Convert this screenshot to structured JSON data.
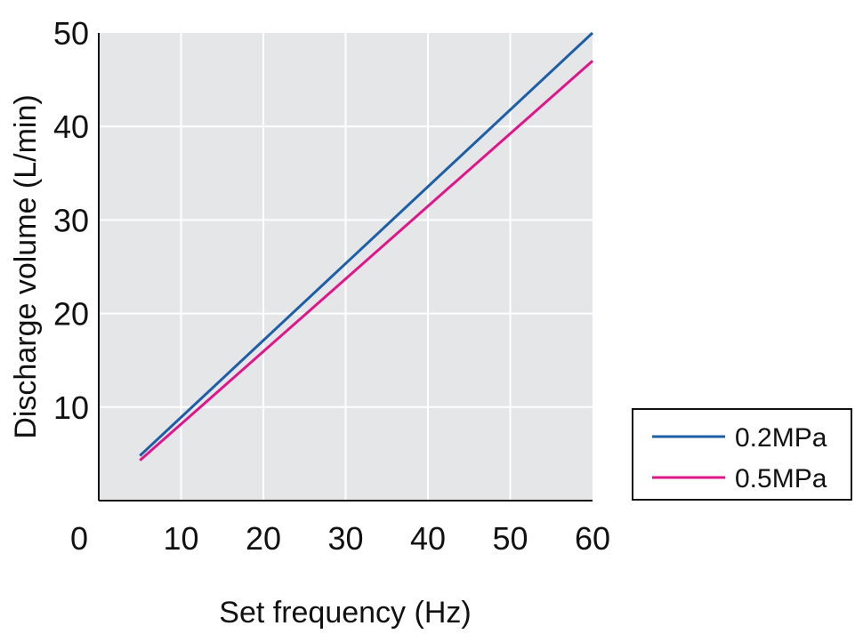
{
  "chart_data": {
    "type": "line",
    "xlabel": "Set frequency (Hz)",
    "ylabel": "Discharge volume (L/min)",
    "xlim": [
      0,
      60
    ],
    "ylim": [
      0,
      50
    ],
    "xticks": [
      0,
      10,
      20,
      30,
      40,
      50,
      60
    ],
    "yticks": [
      10,
      20,
      30,
      40,
      50
    ],
    "grid": true,
    "legend_position": "right, outside plot",
    "series": [
      {
        "name": "0.2MPa",
        "color": "#1d5fa6",
        "points": [
          [
            5,
            4.8
          ],
          [
            60,
            50
          ]
        ]
      },
      {
        "name": "0.5MPa",
        "color": "#e0158a",
        "points": [
          [
            5,
            4.3
          ],
          [
            60,
            47
          ]
        ]
      }
    ]
  }
}
